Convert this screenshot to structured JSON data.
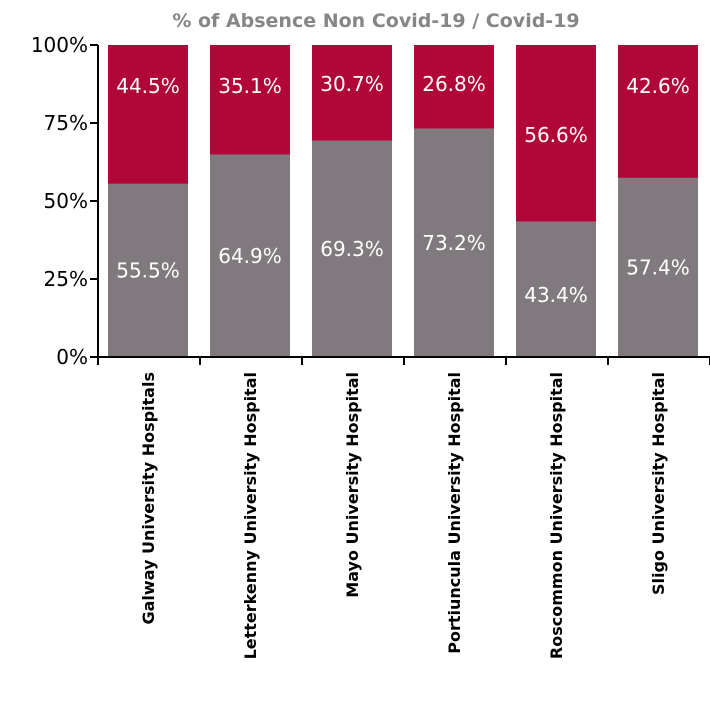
{
  "chart_data": {
    "type": "bar",
    "stacked": true,
    "percent_stacked": true,
    "title": "% of Absence Non Covid-19 / Covid-19",
    "xlabel": "",
    "ylabel": "",
    "categories": [
      "Galway University Hospitals",
      "Letterkenny University Hospital",
      "Mayo University Hospital",
      "Portiuncula University Hospital",
      "Roscommon University Hospital",
      "Sligo University Hospital"
    ],
    "series": [
      {
        "color": "#807a7f",
        "values": [
          55.5,
          64.9,
          69.3,
          73.2,
          43.4,
          57.4
        ],
        "labels": [
          "55.5%",
          "64.9%",
          "69.3%",
          "73.2%",
          "43.4%",
          "57.4%"
        ]
      },
      {
        "color": "#b10638",
        "values": [
          44.5,
          35.1,
          30.7,
          26.8,
          56.6,
          42.6
        ],
        "labels": [
          "44.5%",
          "35.1%",
          "30.7%",
          "26.8%",
          "56.6%",
          "42.6%"
        ]
      }
    ],
    "ylim": [
      0,
      100
    ],
    "yticks": [
      0,
      25,
      50,
      75,
      100
    ],
    "ytick_labels": [
      "0%",
      "25%",
      "50%",
      "75%",
      "100%"
    ],
    "grid": false,
    "legend": "none"
  }
}
